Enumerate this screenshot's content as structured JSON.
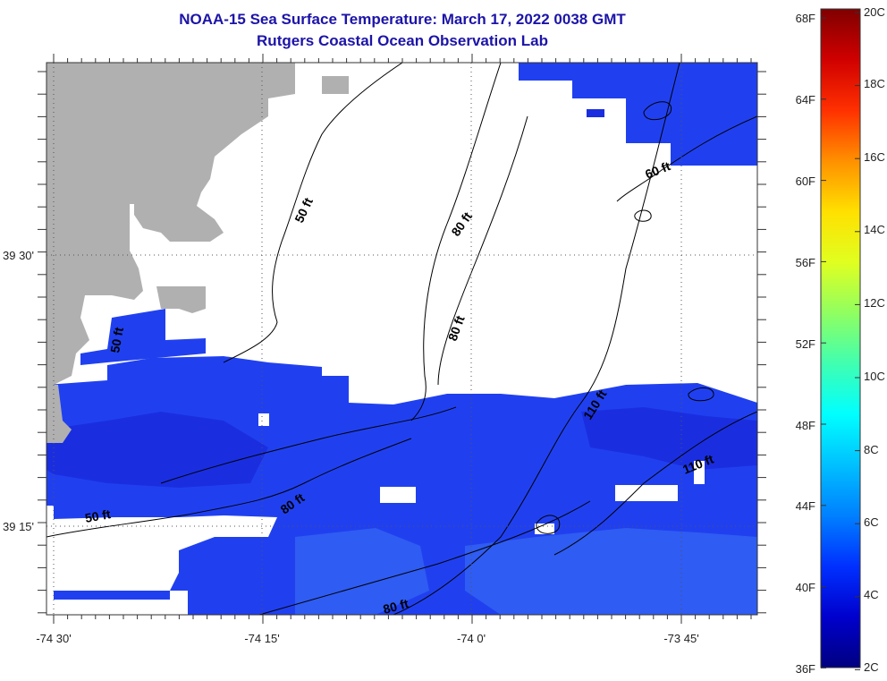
{
  "title": {
    "line1": "NOAA-15 Sea Surface Temperature:  March 17, 2022 0038 GMT",
    "line2": "Rutgers Coastal Ocean Observation Lab"
  },
  "axes": {
    "lon_labels": [
      "-74 30'",
      "-74 15'",
      "-74 0'",
      "-73 45'"
    ],
    "lat_labels": [
      "39 30'",
      "39 15'"
    ]
  },
  "contour_labels": [
    "50 ft",
    "50 ft",
    "80 ft",
    "80 ft",
    "80 ft",
    "80 ft",
    "110 ft",
    "110 ft",
    "50 ft",
    "60 ft"
  ],
  "colorbar": {
    "fahrenheit": [
      "68F",
      "64F",
      "60F",
      "56F",
      "52F",
      "48F",
      "44F",
      "40F",
      "36F"
    ],
    "celsius": [
      "20C",
      "18C",
      "16C",
      "14C",
      "12C",
      "10C",
      "8C",
      "6C",
      "4C",
      "2C"
    ],
    "stops": [
      "#000080",
      "#0000cd",
      "#0030ff",
      "#0080ff",
      "#00c0ff",
      "#00ffff",
      "#40ffb0",
      "#90ff60",
      "#e0ff20",
      "#ffe000",
      "#ff9000",
      "#ff3000",
      "#d00000",
      "#800000"
    ]
  },
  "colors": {
    "land": "#b0b0b0",
    "water_cold": "#1a2ee0",
    "water_mid": "#2040f0",
    "water_light": "#2f5cf2",
    "cloud": "#ffffff",
    "title": "#1c14a8"
  }
}
